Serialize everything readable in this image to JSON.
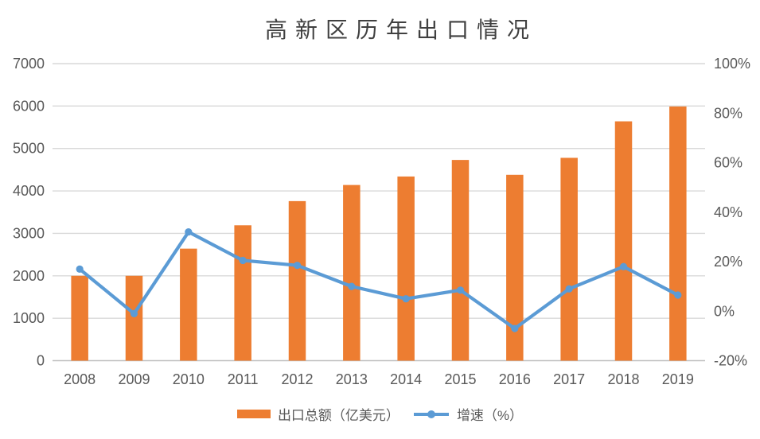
{
  "title": "高新区历年出口情况",
  "colors": {
    "bar": "#ED7D31",
    "line": "#5B9BD5",
    "gridline": "#D9D9D9",
    "axis_line": "#BFBFBF",
    "tick_label": "#595959",
    "title": "#404040",
    "legend_label": "#595959",
    "background": "#FFFFFF"
  },
  "legend": {
    "bar_label": "出口总额（亿美元）",
    "line_label": "增速（%）"
  },
  "chart_data": {
    "type": "bar+line-combo",
    "title": "高新区历年出口情况",
    "categories": [
      "2008",
      "2009",
      "2010",
      "2011",
      "2012",
      "2013",
      "2014",
      "2015",
      "2016",
      "2017",
      "2018",
      "2019"
    ],
    "series": [
      {
        "name": "出口总额（亿美元）",
        "type": "bar",
        "axis": "left",
        "color": "#ED7D31",
        "values": [
          2000,
          2000,
          2640,
          3190,
          3760,
          4140,
          4340,
          4730,
          4380,
          4780,
          5640,
          5990
        ]
      },
      {
        "name": "增速（%）",
        "type": "line",
        "axis": "right",
        "color": "#5B9BD5",
        "values": [
          17,
          -1,
          32,
          20.5,
          18.5,
          10,
          5,
          8.5,
          -7,
          9,
          18,
          6.5
        ]
      }
    ],
    "left_axis": {
      "min": 0,
      "max": 7000,
      "step": 1000,
      "tick_values": [
        0,
        1000,
        2000,
        3000,
        4000,
        5000,
        6000,
        7000
      ],
      "tick_labels": [
        "0",
        "1000",
        "2000",
        "3000",
        "4000",
        "5000",
        "6000",
        "7000"
      ]
    },
    "right_axis": {
      "min": -20,
      "max": 100,
      "step": 20,
      "tick_values": [
        -20,
        0,
        20,
        40,
        60,
        80,
        100
      ],
      "tick_labels": [
        "-20%",
        "0%",
        "20%",
        "40%",
        "60%",
        "80%",
        "100%"
      ]
    },
    "grid": "horizontal",
    "legend_position": "bottom"
  }
}
